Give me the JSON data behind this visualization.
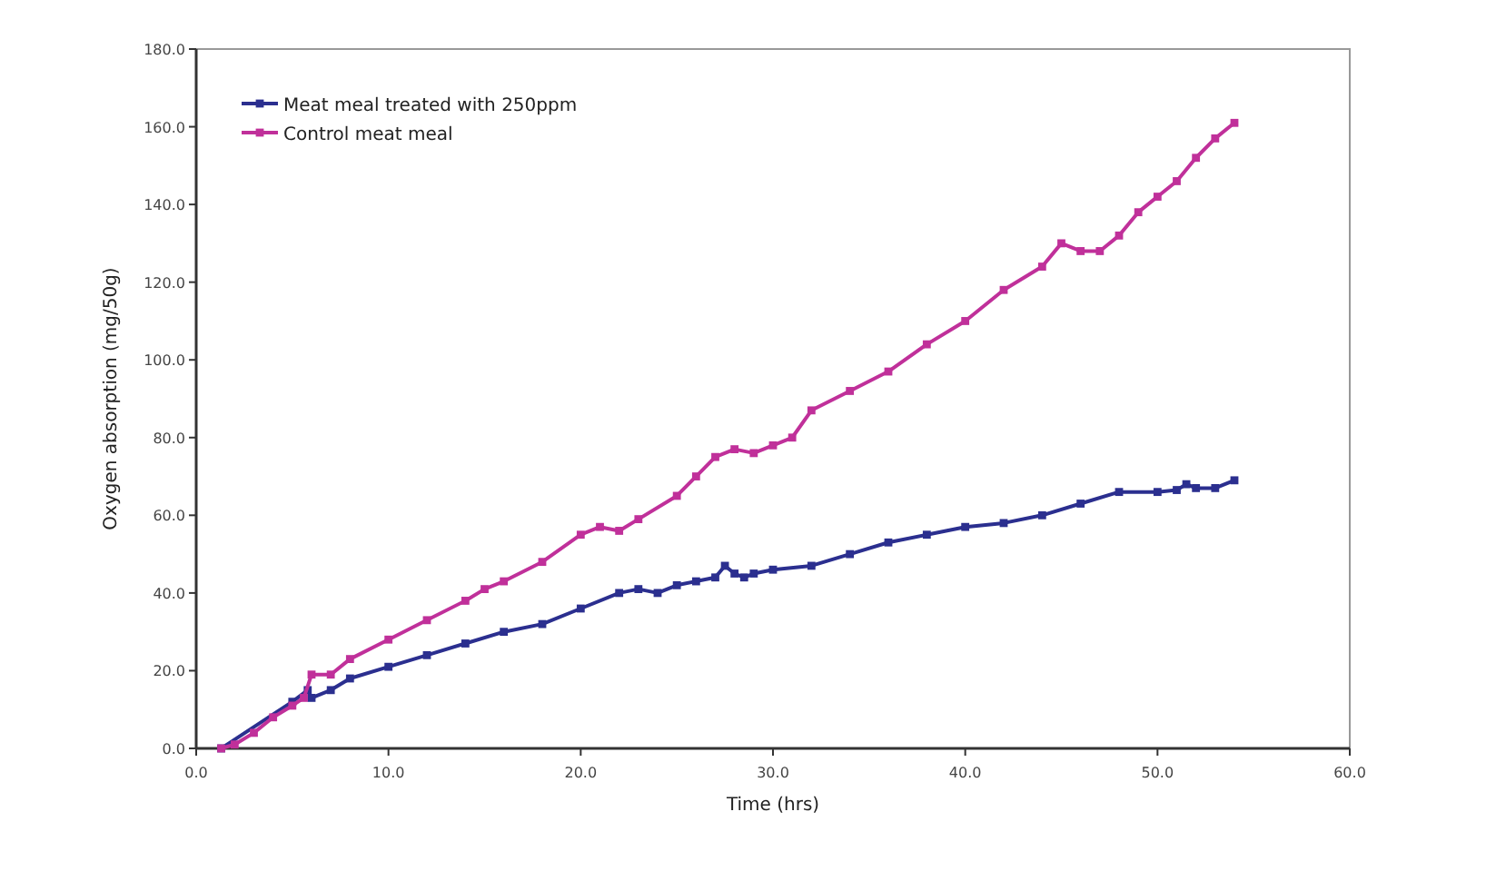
{
  "chart_data": {
    "type": "line",
    "xlabel": "Time (hrs)",
    "ylabel": "Oxygen absorption (mg/50g)",
    "xlim": [
      0,
      60
    ],
    "xticks": [
      {
        "value": 0,
        "label": "0.0"
      },
      {
        "value": 10,
        "label": "10.0"
      },
      {
        "value": 20,
        "label": "20.0"
      },
      {
        "value": 30,
        "label": "30.0"
      },
      {
        "value": 40,
        "label": "40.0"
      },
      {
        "value": 50,
        "label": "50.0"
      },
      {
        "value": 60,
        "label": "60.0"
      }
    ],
    "ylim": [
      0,
      180
    ],
    "yticks": [
      {
        "value": 0,
        "label": "0.0"
      },
      {
        "value": 20,
        "label": "20.0"
      },
      {
        "value": 40,
        "label": "40.0"
      },
      {
        "value": 60,
        "label": "60.0"
      },
      {
        "value": 80,
        "label": "80.0"
      },
      {
        "value": 100,
        "label": "100.0"
      },
      {
        "value": 120,
        "label": "120.0"
      },
      {
        "value": 140,
        "label": "140.0"
      },
      {
        "value": 160,
        "label": "160.0"
      },
      {
        "value": 180,
        "label": "180.0"
      }
    ],
    "grid": false,
    "legend": "top left",
    "marker": "square",
    "line_style": "solid",
    "series": [
      {
        "name": "Meat meal treated with 250ppm",
        "color": "#2b2f8f",
        "x": [
          1.3,
          5,
          5.8,
          6,
          7,
          8,
          10,
          12,
          14,
          16,
          18,
          20,
          22,
          23,
          24,
          25,
          26,
          27,
          27.5,
          28,
          28.5,
          29,
          30,
          32,
          34,
          36,
          38,
          40,
          42,
          44,
          46,
          48,
          50,
          51,
          51.5,
          52,
          53,
          54
        ],
        "values": [
          0,
          12,
          15,
          13,
          15,
          18,
          21,
          24,
          27,
          30,
          32,
          36,
          40,
          41,
          40,
          42,
          43,
          44,
          47,
          45,
          44,
          45,
          46,
          47,
          50,
          53,
          55,
          57,
          58,
          60,
          63,
          66,
          66,
          66.5,
          68,
          67,
          67,
          69
        ]
      },
      {
        "name": "Control meat meal",
        "color": "#c0309a",
        "x": [
          1.3,
          2,
          3,
          4,
          5,
          5.6,
          6,
          7,
          8,
          10,
          12,
          14,
          15,
          16,
          18,
          20,
          21,
          22,
          23,
          25,
          26,
          27,
          28,
          29,
          30,
          31,
          32,
          34,
          36,
          38,
          40,
          42,
          44,
          45,
          46,
          47,
          48,
          49,
          50,
          51,
          52,
          53,
          54
        ],
        "values": [
          0,
          1,
          4,
          8,
          11,
          13,
          19,
          19,
          23,
          28,
          33,
          38,
          41,
          43,
          48,
          55,
          57,
          56,
          59,
          65,
          70,
          75,
          77,
          76,
          78,
          80,
          87,
          92,
          97,
          104,
          110,
          118,
          124,
          130,
          128,
          128,
          132,
          138,
          142,
          146,
          152,
          157,
          161
        ]
      }
    ]
  }
}
